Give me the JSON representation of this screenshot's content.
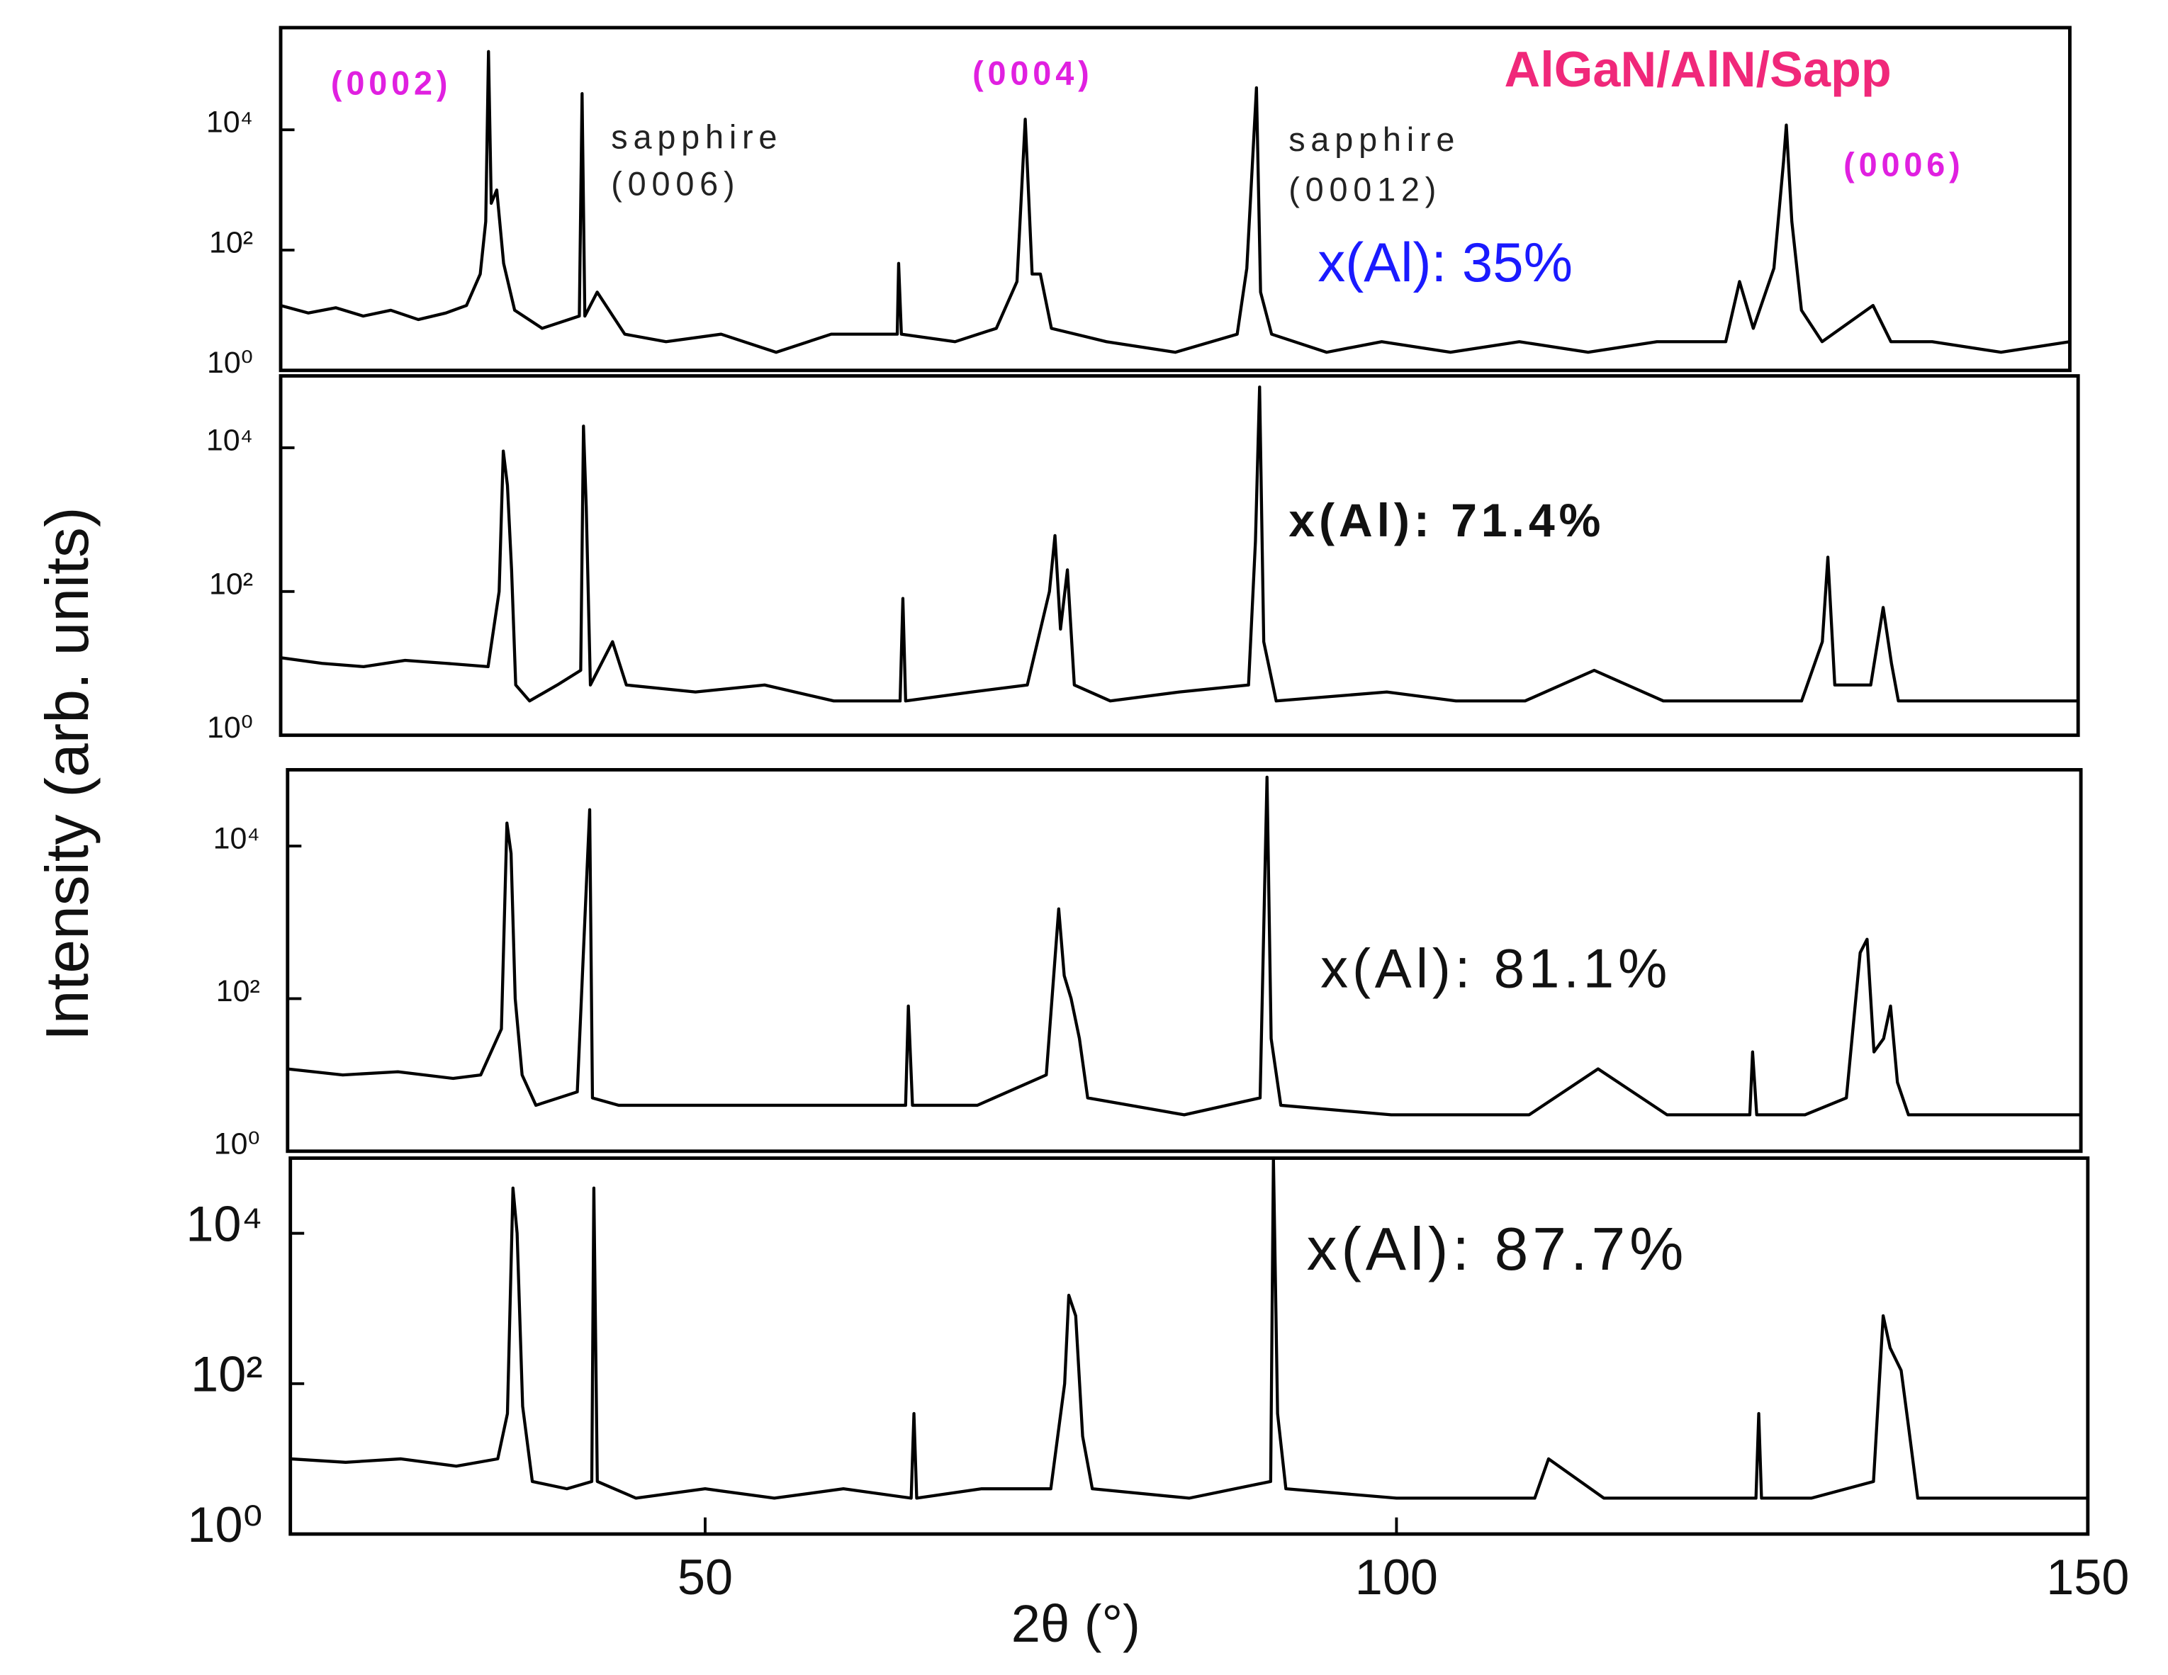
{
  "chart_data": [
    {
      "type": "line",
      "title": "AlGaN/AlN/Sapp",
      "ylabel": "Intensity (arb. units)",
      "color": "#000000",
      "log_y": true,
      "annotations": [
        "(0002)",
        "(0004)",
        "(0006)",
        "sapphire",
        "(0006)",
        "sapphire",
        "(00012)",
        "x(Al): 35%"
      ],
      "xlim": [
        20,
        150
      ],
      "ylim": [
        1,
        500000
      ],
      "yticks": [
        {
          "value": 1,
          "label": "10⁰"
        },
        {
          "value": 100,
          "label": "10²"
        },
        {
          "value": 10000,
          "label": "10⁴"
        }
      ],
      "x": [
        20,
        22,
        24,
        26,
        28,
        30,
        32,
        33.5,
        34.5,
        34.9,
        35.1,
        35.3,
        35.7,
        36.2,
        37,
        39,
        41.7,
        41.9,
        42.1,
        43,
        45,
        48,
        52,
        56,
        60,
        64.8,
        64.9,
        65.1,
        69,
        72,
        73.5,
        74.1,
        74.6,
        75.2,
        76,
        80,
        85,
        89.5,
        90.2,
        90.9,
        91.2,
        92,
        96,
        100,
        105,
        110,
        115,
        120,
        125,
        126,
        127,
        128.5,
        129.2,
        129.4,
        129.8,
        130.5,
        132,
        135.7,
        137,
        140,
        145,
        150
      ],
      "values": [
        12,
        9,
        11,
        8,
        10,
        7,
        9,
        12,
        40,
        300,
        200000,
        600,
        1000,
        60,
        10,
        5,
        8,
        40000,
        8,
        20,
        4,
        3,
        4,
        2,
        4,
        4,
        60,
        4,
        3,
        5,
        30,
        15000,
        40,
        40,
        5,
        3,
        2,
        4,
        50,
        50000,
        20,
        4,
        2,
        3,
        2,
        3,
        2,
        3,
        3,
        30,
        5,
        50,
        3000,
        12000,
        300,
        10,
        3,
        12,
        3,
        3,
        2,
        3
      ]
    },
    {
      "type": "line",
      "color": "#000000",
      "log_y": true,
      "annotations": [
        "x(Al): 71.4%"
      ],
      "xlim": [
        20,
        150
      ],
      "ylim": [
        1,
        100000
      ],
      "yticks": [
        {
          "value": 1,
          "label": "10⁰"
        },
        {
          "value": 100,
          "label": "10²"
        },
        {
          "value": 10000,
          "label": "10⁴"
        }
      ],
      "x": [
        20,
        23,
        26,
        29,
        32,
        35,
        35.8,
        36.1,
        36.4,
        36.7,
        37,
        38,
        40,
        41.7,
        41.9,
        42.1,
        42.4,
        44,
        45,
        50,
        55,
        60,
        64.8,
        65,
        65.2,
        70,
        74,
        75.6,
        76,
        76.4,
        76.9,
        77.4,
        80,
        85,
        90,
        90.5,
        90.8,
        91.1,
        92,
        100,
        105,
        110,
        115,
        120,
        125,
        130,
        131.5,
        131.9,
        132.4,
        135,
        135.9,
        136.5,
        137,
        140,
        145,
        150
      ],
      "values": [
        12,
        10,
        9,
        11,
        10,
        9,
        100,
        9000,
        3000,
        200,
        5,
        3,
        5,
        8,
        20000,
        1500,
        5,
        20,
        5,
        4,
        5,
        3,
        3,
        80,
        3,
        4,
        5,
        100,
        600,
        30,
        200,
        5,
        3,
        4,
        5,
        500,
        70000,
        20,
        3,
        4,
        3,
        3,
        8,
        3,
        3,
        3,
        20,
        300,
        5,
        5,
        60,
        10,
        3,
        3,
        3,
        3
      ]
    },
    {
      "type": "line",
      "color": "#000000",
      "log_y": true,
      "annotations": [
        "x(Al): 81.1%"
      ],
      "xlim": [
        20,
        150
      ],
      "ylim": [
        1,
        100000
      ],
      "yticks": [
        {
          "value": 1,
          "label": "10⁰"
        },
        {
          "value": 100,
          "label": "10²"
        },
        {
          "value": 10000,
          "label": "10⁴"
        }
      ],
      "x": [
        20,
        24,
        28,
        32,
        34,
        35.5,
        35.9,
        36.2,
        36.5,
        37,
        38,
        41,
        41.9,
        42.1,
        44,
        50,
        55,
        60,
        64.8,
        65,
        65.3,
        70,
        75,
        75.9,
        76.3,
        76.8,
        77.4,
        78,
        85,
        90.5,
        91,
        91.3,
        92,
        100,
        110,
        115,
        120,
        126,
        126.2,
        126.5,
        130,
        133,
        134,
        134.5,
        135,
        135.7,
        136.2,
        136.7,
        137.5,
        140,
        145,
        150
      ],
      "values": [
        12,
        10,
        11,
        9,
        10,
        40,
        20000,
        8000,
        100,
        10,
        4,
        6,
        30000,
        5,
        4,
        4,
        4,
        4,
        4,
        80,
        4,
        4,
        10,
        1500,
        200,
        100,
        30,
        5,
        3,
        5,
        80000,
        30,
        4,
        3,
        3,
        12,
        3,
        3,
        20,
        3,
        3,
        5,
        400,
        600,
        20,
        30,
        80,
        8,
        3,
        3,
        3,
        3
      ]
    },
    {
      "type": "line",
      "xlabel": "2θ (°)",
      "color": "#000000",
      "log_y": true,
      "annotations": [
        "x(Al): 87.7%"
      ],
      "xlim": [
        20,
        150
      ],
      "ylim": [
        1,
        100000
      ],
      "xticks": [
        50,
        100,
        150
      ],
      "yticks": [
        {
          "value": 1,
          "label": "10⁰"
        },
        {
          "value": 100,
          "label": "10²"
        },
        {
          "value": 10000,
          "label": "10⁴"
        }
      ],
      "x": [
        20,
        24,
        28,
        32,
        35,
        35.7,
        36.1,
        36.4,
        36.8,
        37.5,
        40,
        41.8,
        41.95,
        42.2,
        45,
        50,
        55,
        60,
        64.9,
        65.1,
        65.3,
        70,
        75,
        76,
        76.3,
        76.8,
        77.3,
        78,
        85,
        90.9,
        91.1,
        91.4,
        92,
        100,
        110,
        111,
        115,
        120,
        126,
        126.2,
        126.4,
        130,
        134.5,
        135.2,
        135.7,
        136.5,
        137,
        137.7,
        140,
        145,
        150
      ],
      "values": [
        10,
        9,
        10,
        8,
        10,
        40,
        40000,
        10000,
        50,
        5,
        4,
        5,
        40000,
        5,
        3,
        4,
        3,
        4,
        3,
        40,
        3,
        4,
        4,
        100,
        1500,
        800,
        20,
        4,
        3,
        5,
        100000,
        40,
        4,
        3,
        3,
        10,
        3,
        3,
        3,
        40,
        3,
        3,
        5,
        800,
        300,
        150,
        30,
        3,
        3,
        3,
        3
      ]
    }
  ]
}
